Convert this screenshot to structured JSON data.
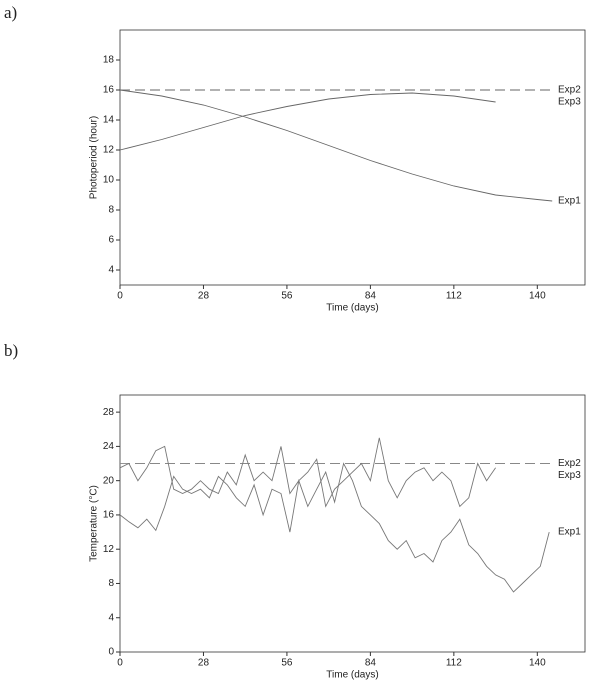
{
  "chart_data": [
    {
      "type": "line",
      "label": "a)",
      "xlabel": "Time (days)",
      "ylabel": "Photoperiod (hour)",
      "xlim": [
        0,
        156
      ],
      "ylim": [
        3,
        20
      ],
      "xticks": [
        0,
        28,
        56,
        84,
        112,
        140
      ],
      "yticks": [
        4,
        6,
        8,
        10,
        12,
        14,
        16,
        18
      ],
      "series": [
        {
          "name": "Exp2",
          "color": "#666666",
          "dashed": true,
          "x": [
            0,
            145
          ],
          "values": [
            16,
            16
          ]
        },
        {
          "name": "Exp3",
          "color": "#666666",
          "x": [
            0,
            14,
            28,
            42,
            56,
            70,
            84,
            98,
            112,
            126
          ],
          "values": [
            12,
            12.7,
            13.5,
            14.3,
            14.9,
            15.4,
            15.7,
            15.8,
            15.6,
            15.2
          ]
        },
        {
          "name": "Exp1",
          "color": "#666666",
          "x": [
            0,
            14,
            28,
            42,
            56,
            70,
            84,
            98,
            112,
            126,
            140,
            145
          ],
          "values": [
            16,
            15.6,
            15.0,
            14.2,
            13.3,
            12.3,
            11.3,
            10.4,
            9.6,
            9.0,
            8.7,
            8.6
          ]
        }
      ]
    },
    {
      "type": "line",
      "label": "b)",
      "xlabel": "Time (days)",
      "ylabel": "Temperature (°C)",
      "xlim": [
        0,
        156
      ],
      "ylim": [
        0,
        30
      ],
      "xticks": [
        0,
        28,
        56,
        84,
        112,
        140
      ],
      "yticks": [
        0,
        4,
        8,
        12,
        16,
        20,
        24,
        28
      ],
      "series": [
        {
          "name": "Exp2",
          "color": "#888888",
          "dashed": true,
          "x": [
            0,
            145
          ],
          "values": [
            22,
            22
          ]
        },
        {
          "name": "Exp3",
          "color": "#777777",
          "x": [
            0,
            3,
            6,
            9,
            12,
            15,
            18,
            21,
            24,
            27,
            30,
            33,
            36,
            39,
            42,
            45,
            48,
            51,
            54,
            57,
            60,
            63,
            66,
            69,
            72,
            75,
            78,
            81,
            84,
            87,
            90,
            93,
            96,
            99,
            102,
            105,
            108,
            111,
            114,
            117,
            120,
            123,
            126
          ],
          "values": [
            21.5,
            22,
            20,
            21.5,
            23.5,
            24,
            19,
            18.5,
            19,
            20,
            19,
            18.5,
            21,
            19.5,
            23,
            20,
            21,
            20,
            24,
            18.5,
            20,
            21,
            22.5,
            17,
            19,
            20,
            21,
            22,
            20,
            25,
            20,
            18,
            20,
            21,
            21.5,
            20,
            21,
            20,
            17,
            18,
            22,
            20,
            21.5
          ]
        },
        {
          "name": "Exp1",
          "color": "#777777",
          "x": [
            0,
            3,
            6,
            9,
            12,
            15,
            18,
            21,
            24,
            27,
            30,
            33,
            36,
            39,
            42,
            45,
            48,
            51,
            54,
            57,
            60,
            63,
            66,
            69,
            72,
            75,
            78,
            81,
            84,
            87,
            90,
            93,
            96,
            99,
            102,
            105,
            108,
            111,
            114,
            117,
            120,
            123,
            126,
            129,
            132,
            135,
            138,
            141,
            144
          ],
          "values": [
            16,
            15.2,
            14.5,
            15.5,
            14.2,
            17,
            20.5,
            19,
            18.5,
            19,
            18,
            20.5,
            19.5,
            18,
            17,
            19.5,
            16,
            19,
            18.5,
            14,
            20,
            17,
            19,
            21,
            17.5,
            22,
            20,
            17,
            16,
            15,
            13,
            12,
            13,
            11,
            11.5,
            10.5,
            13,
            14,
            15.5,
            12.5,
            11.5,
            10,
            9,
            8.5,
            7,
            8,
            9,
            10,
            14
          ]
        }
      ]
    }
  ]
}
